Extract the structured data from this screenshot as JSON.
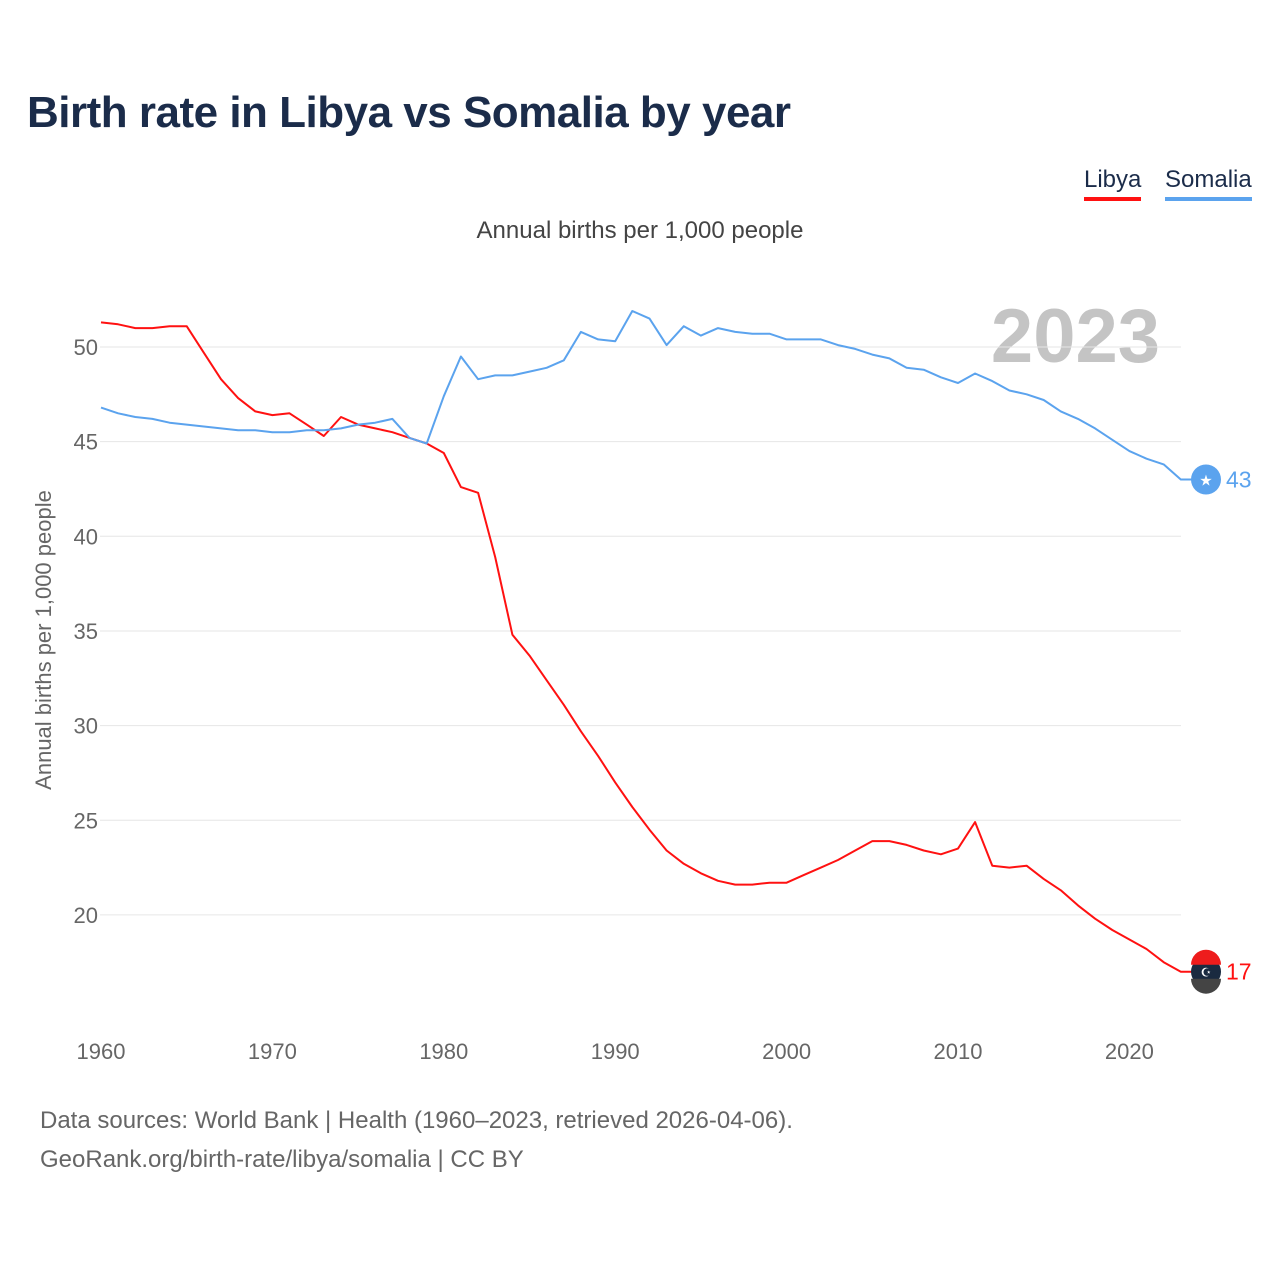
{
  "title": "Birth rate in Libya vs Somalia by year",
  "legend": [
    {
      "label": "Libya",
      "color": "#ff1111"
    },
    {
      "label": "Somalia",
      "color": "#5ba3ee"
    }
  ],
  "footer": {
    "line1": "Data sources: World Bank | Health (1960–2023, retrieved 2026-04-06).",
    "line2": "GeoRank.org/birth-rate/libya/somalia | CC BY"
  },
  "chart_data": {
    "type": "line",
    "title": "Birth rate in Libya vs Somalia by year",
    "subtitle": "Annual births per 1,000 people",
    "ylabel": "Annual births per 1,000 people",
    "xlabel": "",
    "year_watermark": "2023",
    "xlim": [
      1960,
      2023
    ],
    "ylim": [
      15,
      53
    ],
    "grid": true,
    "xticks": [
      "1960",
      "1970",
      "1980",
      "1990",
      "2000",
      "2010",
      "2020"
    ],
    "yticks": [
      "20",
      "25",
      "30",
      "35",
      "40",
      "45",
      "50"
    ],
    "x_start": 1960,
    "series": [
      {
        "name": "Libya",
        "color": "#ff1111",
        "end_label": "17",
        "values": [
          51.3,
          51.2,
          51.0,
          51.0,
          51.1,
          51.1,
          49.7,
          48.3,
          47.3,
          46.6,
          46.4,
          46.5,
          45.9,
          45.3,
          46.3,
          45.9,
          45.7,
          45.5,
          45.2,
          44.9,
          44.4,
          42.6,
          42.3,
          38.9,
          34.8,
          33.7,
          32.4,
          31.1,
          29.7,
          28.4,
          27.0,
          25.7,
          24.5,
          23.4,
          22.7,
          22.2,
          21.8,
          21.6,
          21.6,
          21.7,
          21.7,
          22.1,
          22.5,
          22.9,
          23.4,
          23.9,
          23.9,
          23.7,
          23.4,
          23.2,
          23.5,
          24.9,
          22.6,
          22.5,
          22.6,
          21.9,
          21.3,
          20.5,
          19.8,
          19.2,
          18.7,
          18.2,
          17.5,
          17.0
        ]
      },
      {
        "name": "Somalia",
        "color": "#5ba3ee",
        "end_label": "43",
        "values": [
          46.8,
          46.5,
          46.3,
          46.2,
          46.0,
          45.9,
          45.8,
          45.7,
          45.6,
          45.6,
          45.5,
          45.5,
          45.6,
          45.6,
          45.7,
          45.9,
          46.0,
          46.2,
          45.2,
          44.9,
          47.4,
          49.5,
          48.3,
          48.5,
          48.5,
          48.7,
          48.9,
          49.3,
          50.8,
          50.4,
          50.3,
          51.9,
          51.5,
          50.1,
          51.1,
          50.6,
          51.0,
          50.8,
          50.7,
          50.7,
          50.4,
          50.4,
          50.4,
          50.1,
          49.9,
          49.6,
          49.4,
          48.9,
          48.8,
          48.4,
          48.1,
          48.6,
          48.2,
          47.7,
          47.5,
          47.2,
          46.6,
          46.2,
          45.7,
          45.1,
          44.5,
          44.1,
          43.8,
          43.0
        ]
      }
    ]
  }
}
